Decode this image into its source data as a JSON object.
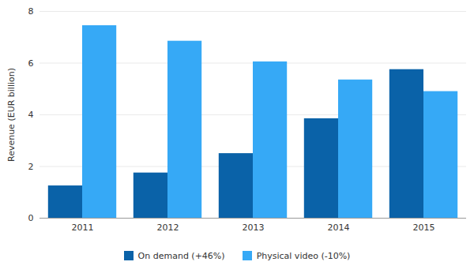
{
  "chart_data": {
    "type": "bar",
    "categories": [
      "2011",
      "2012",
      "2013",
      "2014",
      "2015"
    ],
    "series": [
      {
        "name": "On demand (+46%)",
        "color": "#0a62a8",
        "values": [
          1.25,
          1.75,
          2.5,
          3.85,
          5.75
        ]
      },
      {
        "name": "Physical video (-10%)",
        "color": "#36a9f6",
        "values": [
          7.45,
          6.85,
          6.05,
          5.35,
          4.9
        ]
      }
    ],
    "y_label": "Revenue (EUR billion)",
    "ylim": [
      0,
      8
    ],
    "yticks": [
      0,
      2,
      4,
      6,
      8
    ],
    "grid": true,
    "legend": "bottom"
  }
}
